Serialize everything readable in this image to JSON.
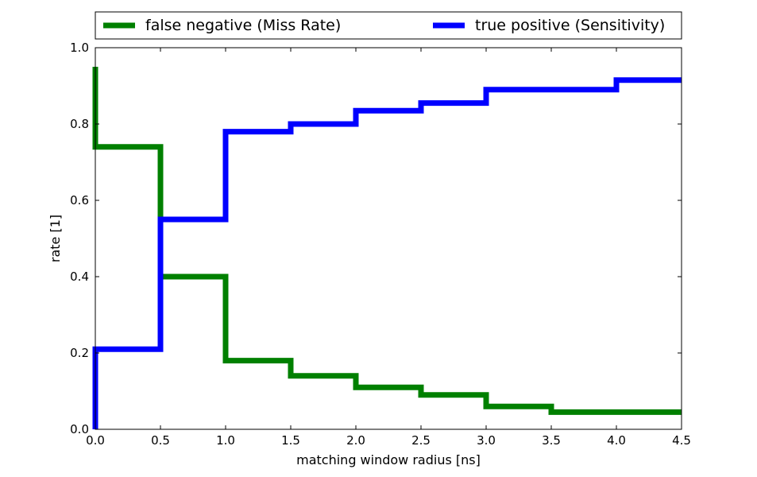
{
  "chart_data": {
    "type": "line",
    "step": "post",
    "xlabel": "matching window radius [ns]",
    "ylabel": "rate [1]",
    "xlim": [
      0.0,
      4.5
    ],
    "ylim": [
      0.0,
      1.0
    ],
    "xticks": [
      "0.0",
      "0.5",
      "1.0",
      "1.5",
      "2.0",
      "2.5",
      "3.0",
      "3.5",
      "4.0",
      "4.5"
    ],
    "yticks": [
      "0.0",
      "0.2",
      "0.4",
      "0.6",
      "0.8",
      "1.0"
    ],
    "grid": false,
    "legend_position": "top",
    "series": [
      {
        "name": "false negative (Miss Rate)",
        "color": "#008000",
        "x": [
          0.0,
          0.0,
          0.5,
          1.0,
          1.5,
          2.0,
          2.5,
          3.0,
          3.5,
          4.0,
          4.5
        ],
        "y": [
          0.95,
          0.74,
          0.4,
          0.18,
          0.14,
          0.11,
          0.09,
          0.06,
          0.045,
          0.045,
          0.045
        ]
      },
      {
        "name": "true positive (Sensitivity)",
        "color": "#0000ff",
        "x": [
          0.0,
          0.0,
          0.5,
          1.0,
          1.5,
          2.0,
          2.5,
          3.0,
          3.5,
          4.0,
          4.5
        ],
        "y": [
          0.0,
          0.21,
          0.55,
          0.78,
          0.8,
          0.835,
          0.855,
          0.89,
          0.89,
          0.915,
          0.915
        ]
      }
    ]
  }
}
